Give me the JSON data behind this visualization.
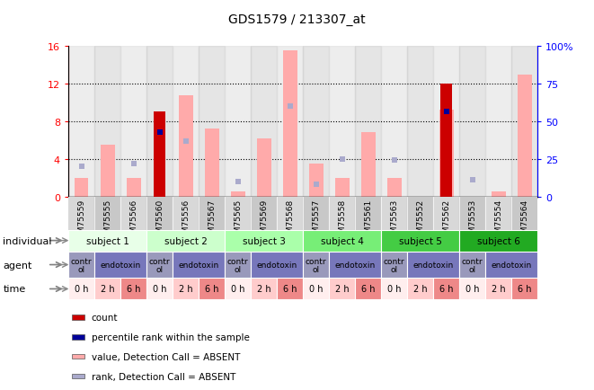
{
  "title": "GDS1579 / 213307_at",
  "samples": [
    "GSM75559",
    "GSM75555",
    "GSM75566",
    "GSM75560",
    "GSM75556",
    "GSM75567",
    "GSM75565",
    "GSM75569",
    "GSM75568",
    "GSM75557",
    "GSM75558",
    "GSM75561",
    "GSM75563",
    "GSM75552",
    "GSM75562",
    "GSM75553",
    "GSM75554",
    "GSM75564"
  ],
  "count_values": [
    0,
    0,
    0,
    9.0,
    0,
    0,
    0,
    0,
    0,
    0,
    0,
    0,
    0,
    0,
    12.0,
    0,
    0,
    0
  ],
  "rank_values_left": [
    0,
    0,
    0,
    6.8,
    0,
    0,
    0,
    0,
    0,
    0,
    0,
    0,
    0,
    0,
    9.0,
    0,
    0,
    0
  ],
  "value_absent": [
    2.0,
    5.5,
    2.0,
    0,
    10.8,
    7.2,
    0.5,
    6.2,
    15.5,
    3.5,
    2.0,
    6.8,
    2.0,
    0,
    9.2,
    0,
    0.5,
    13.0
  ],
  "rank_absent_pct": [
    20,
    0,
    22,
    0,
    37,
    0,
    10,
    0,
    60,
    8,
    25,
    0,
    24,
    0,
    0,
    11,
    0,
    0
  ],
  "ylim_left": [
    0,
    16
  ],
  "ylim_right": [
    0,
    100
  ],
  "yticks_left": [
    0,
    4,
    8,
    12,
    16
  ],
  "ytick_labels_left": [
    "0",
    "4",
    "8",
    "12",
    "16"
  ],
  "ytick_labels_right": [
    "0",
    "25",
    "50",
    "75",
    "100%"
  ],
  "color_count": "#cc0000",
  "color_rank": "#000099",
  "color_value_absent": "#ffaaaa",
  "color_rank_absent": "#aaaacc",
  "subject_colors": [
    "#e8ffe8",
    "#ccffcc",
    "#aaffaa",
    "#77ee77",
    "#44cc44",
    "#22aa22"
  ],
  "subjects": [
    {
      "label": "subject 1",
      "start": 0,
      "end": 3
    },
    {
      "label": "subject 2",
      "start": 3,
      "end": 6
    },
    {
      "label": "subject 3",
      "start": 6,
      "end": 9
    },
    {
      "label": "subject 4",
      "start": 9,
      "end": 12
    },
    {
      "label": "subject 5",
      "start": 12,
      "end": 15
    },
    {
      "label": "subject 6",
      "start": 15,
      "end": 18
    }
  ],
  "agents": [
    {
      "label": "control",
      "start": 0,
      "end": 1
    },
    {
      "label": "endotoxin",
      "start": 1,
      "end": 3
    },
    {
      "label": "control",
      "start": 3,
      "end": 4
    },
    {
      "label": "endotoxin",
      "start": 4,
      "end": 6
    },
    {
      "label": "control",
      "start": 6,
      "end": 7
    },
    {
      "label": "endotoxin",
      "start": 7,
      "end": 9
    },
    {
      "label": "control",
      "start": 9,
      "end": 10
    },
    {
      "label": "endotoxin",
      "start": 10,
      "end": 12
    },
    {
      "label": "control",
      "start": 12,
      "end": 13
    },
    {
      "label": "endotoxin",
      "start": 13,
      "end": 15
    },
    {
      "label": "control",
      "start": 15,
      "end": 16
    },
    {
      "label": "endotoxin",
      "start": 16,
      "end": 18
    }
  ],
  "times": [
    {
      "label": "0 h",
      "color": "#ffeeee"
    },
    {
      "label": "2 h",
      "color": "#ffcccc"
    },
    {
      "label": "6 h",
      "color": "#ee8888"
    },
    {
      "label": "0 h",
      "color": "#ffeeee"
    },
    {
      "label": "2 h",
      "color": "#ffcccc"
    },
    {
      "label": "6 h",
      "color": "#ee8888"
    },
    {
      "label": "0 h",
      "color": "#ffeeee"
    },
    {
      "label": "2 h",
      "color": "#ffcccc"
    },
    {
      "label": "6 h",
      "color": "#ee8888"
    },
    {
      "label": "0 h",
      "color": "#ffeeee"
    },
    {
      "label": "2 h",
      "color": "#ffcccc"
    },
    {
      "label": "6 h",
      "color": "#ee8888"
    },
    {
      "label": "0 h",
      "color": "#ffeeee"
    },
    {
      "label": "2 h",
      "color": "#ffcccc"
    },
    {
      "label": "6 h",
      "color": "#ee8888"
    },
    {
      "label": "0 h",
      "color": "#ffeeee"
    },
    {
      "label": "2 h",
      "color": "#ffcccc"
    },
    {
      "label": "6 h",
      "color": "#ee8888"
    }
  ],
  "color_control": "#9999bb",
  "color_endotoxin": "#7777bb",
  "legend_items": [
    {
      "label": "count",
      "color": "#cc0000"
    },
    {
      "label": "percentile rank within the sample",
      "color": "#000099"
    },
    {
      "label": "value, Detection Call = ABSENT",
      "color": "#ffaaaa"
    },
    {
      "label": "rank, Detection Call = ABSENT",
      "color": "#aaaacc"
    }
  ]
}
